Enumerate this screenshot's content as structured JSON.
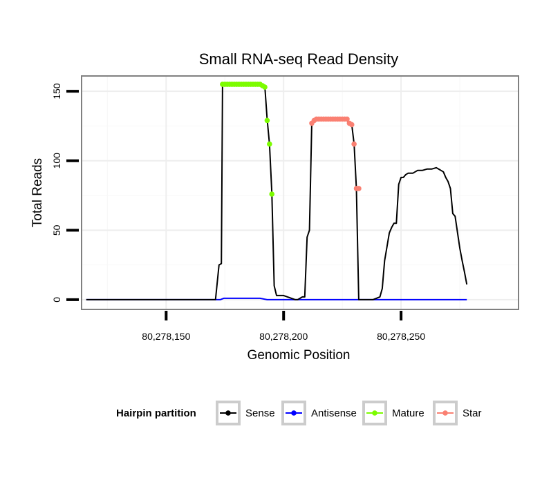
{
  "chart_data": {
    "type": "line",
    "title": "Small RNA-seq Read Density",
    "xlabel": "Genomic Position",
    "ylabel": "Total Reads",
    "xlim": [
      80278114,
      80278300
    ],
    "ylim": [
      -7,
      161
    ],
    "x_ticks": [
      80278150,
      80278200,
      80278250
    ],
    "x_tick_labels": [
      "80,278,150",
      "80,278,200",
      "80,278,250"
    ],
    "y_ticks": [
      0,
      50,
      100,
      150
    ],
    "y_tick_labels": [
      "0",
      "50",
      "100",
      "150"
    ],
    "grid": true,
    "legend_title": "Hairpin partition",
    "legend_position": "bottom",
    "series": [
      {
        "name": "Sense",
        "color": "#000000",
        "x": [
          80278116,
          80278130,
          80278145,
          80278160,
          80278171,
          80278172.5,
          80278173.5,
          80278174,
          80278175,
          80278180,
          80278185,
          80278190,
          80278192,
          80278193,
          80278194,
          80278195,
          80278196,
          80278197,
          80278200,
          80278205,
          80278206,
          80278208,
          80278209,
          80278210,
          80278211,
          80278212,
          80278213,
          80278220,
          80278226,
          80278229,
          80278230,
          80278231,
          80278232,
          80278233,
          80278234,
          80278238,
          80278241,
          80278242,
          80278243,
          80278244,
          80278245,
          80278246,
          80278247,
          80278248,
          80278249,
          80278250,
          80278251,
          80278252,
          80278253,
          80278255,
          80278257,
          80278259,
          80278261,
          80278263,
          80278265,
          80278267,
          80278268,
          80278269,
          80278270,
          80278271,
          80278272,
          80278273,
          80278275,
          80278276,
          80278277,
          80278278
        ],
        "y": [
          0,
          0,
          0,
          0,
          0,
          25,
          26,
          155,
          155,
          155,
          155,
          155,
          154,
          130,
          112,
          77,
          10,
          3,
          3,
          0,
          0,
          2,
          2,
          45,
          50,
          128,
          130,
          130,
          130,
          126,
          112,
          80,
          0,
          0,
          0,
          0,
          2,
          8,
          28,
          38,
          48,
          52,
          55,
          55,
          83,
          88,
          88,
          90,
          91,
          91,
          93,
          93,
          94,
          94,
          95,
          93,
          92,
          88,
          85,
          80,
          62,
          60,
          37,
          28,
          20,
          11
        ]
      },
      {
        "name": "Antisense",
        "color": "#0000ff",
        "x": [
          80278116,
          80278170,
          80278173,
          80278174.5,
          80278188,
          80278190,
          80278193,
          80278215,
          80278250,
          80278278
        ],
        "y": [
          0,
          0,
          0,
          1,
          1,
          1,
          0,
          0,
          0,
          0
        ]
      },
      {
        "name": "Mature",
        "color": "#7cfc00",
        "x": [
          80278174,
          80278175,
          80278176,
          80278177,
          80278178,
          80278179,
          80278180,
          80278181,
          80278182,
          80278183,
          80278184,
          80278185,
          80278186,
          80278187,
          80278188,
          80278189,
          80278190,
          80278191,
          80278192,
          80278193,
          80278194,
          80278195
        ],
        "y": [
          155,
          155,
          155,
          155,
          155,
          155,
          155,
          155,
          155,
          155,
          155,
          155,
          155,
          155,
          155,
          155,
          155,
          154,
          153,
          129,
          112,
          76
        ]
      },
      {
        "name": "Star",
        "color": "#fa8072",
        "x": [
          80278212,
          80278213,
          80278214,
          80278215,
          80278216,
          80278217,
          80278218,
          80278219,
          80278220,
          80278221,
          80278222,
          80278223,
          80278224,
          80278225,
          80278226,
          80278227,
          80278228,
          80278229,
          80278230,
          80278231,
          80278232
        ],
        "y": [
          127,
          129,
          130,
          130,
          130,
          130,
          130,
          130,
          130,
          130,
          130,
          130,
          130,
          130,
          130,
          130,
          127,
          126,
          112,
          80,
          80
        ]
      }
    ]
  }
}
